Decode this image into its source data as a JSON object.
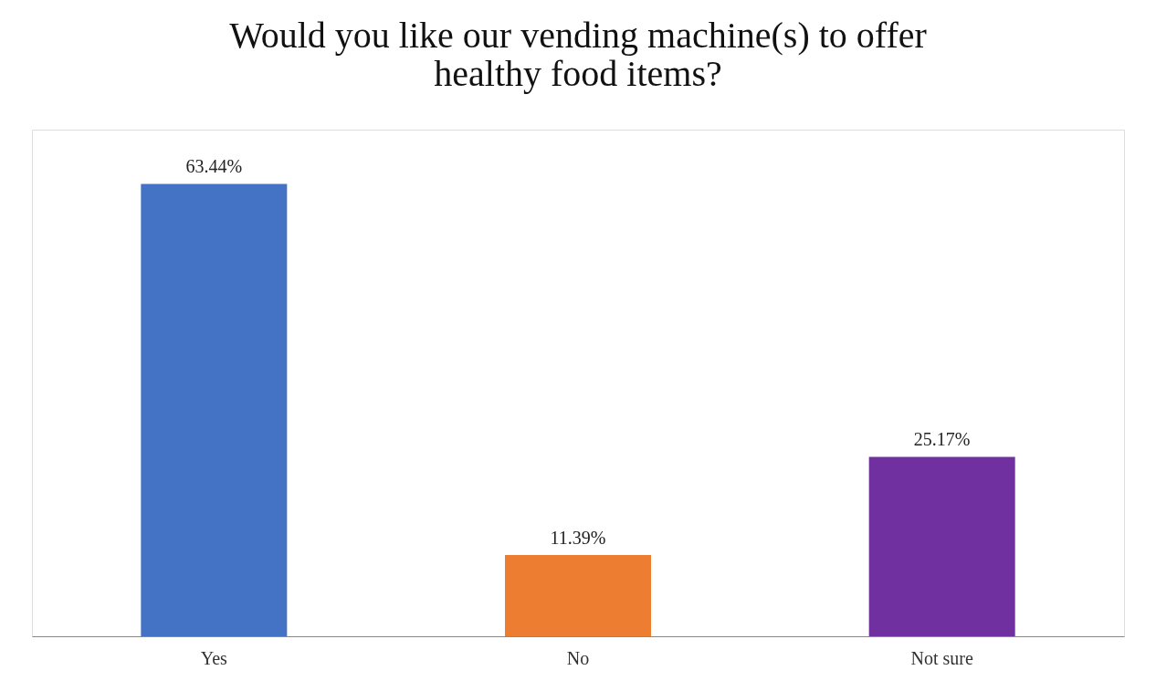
{
  "chart_data": {
    "type": "bar",
    "title": "Would you like our vending machine(s) to offer\nhealthy food items?",
    "categories": [
      "Yes",
      "No",
      "Not sure"
    ],
    "values": [
      63.44,
      11.39,
      25.17
    ],
    "colors": [
      "#4472c4",
      "#ed7d31",
      "#7030a0"
    ],
    "value_labels": [
      "63.44%",
      "11.39%",
      "25.17%"
    ]
  }
}
